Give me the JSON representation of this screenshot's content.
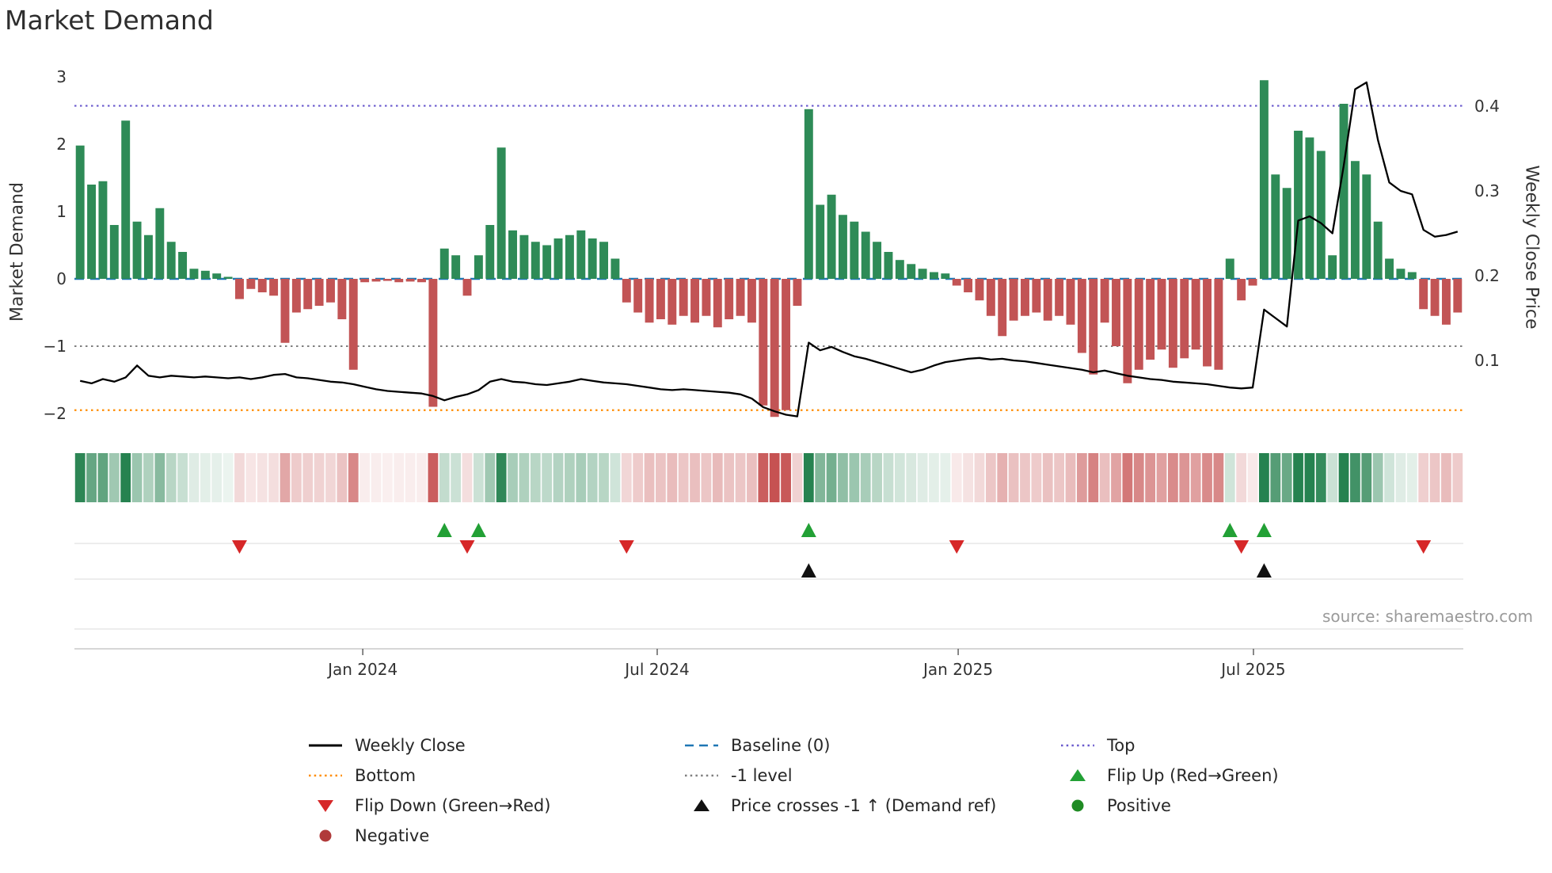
{
  "chart_data": {
    "type": "bar+line",
    "title": "Market Demand",
    "source_text": "source: sharemaestro.com",
    "left_axis": {
      "label": "Market Demand",
      "ticks": [
        3,
        2,
        1,
        0,
        -1,
        -2
      ],
      "range": [
        -2.3,
        3.1
      ]
    },
    "right_axis": {
      "label": "Weekly Close Price",
      "ticks": [
        0.4,
        0.3,
        0.2,
        0.1
      ]
    },
    "x_axis": {
      "ticks": [
        {
          "label": "Jan 2024",
          "f": 0.2076
        },
        {
          "label": "Jul 2024",
          "f": 0.4196
        },
        {
          "label": "Jan 2025",
          "f": 0.6363
        },
        {
          "label": "Jul 2025",
          "f": 0.8489
        }
      ]
    },
    "reference_lines": {
      "top": {
        "label": "Top",
        "value": 2.57,
        "color": "#6a5acd",
        "style": "dotted"
      },
      "baseline": {
        "label": "Baseline (0)",
        "value": 0,
        "color": "#1f77b4",
        "style": "dashed"
      },
      "minus_one": {
        "label": "-1 level",
        "value": -1,
        "color": "#7f7f7f",
        "style": "dotted"
      },
      "bottom": {
        "label": "Bottom",
        "value": -1.95,
        "color": "#ff8c00",
        "style": "dotted"
      }
    },
    "colors": {
      "bar_positive": "#2e8b57",
      "bar_negative": "#c25455",
      "price_line": "#000000",
      "flip_up": "#22a035",
      "flip_down": "#d62728",
      "price_cross": "#111111",
      "heat_positive": "38,130,80",
      "heat_negative": "198,82,82"
    },
    "demand": [
      1.98,
      1.4,
      1.45,
      0.8,
      2.35,
      0.85,
      0.65,
      1.05,
      0.55,
      0.4,
      0.15,
      0.12,
      0.08,
      0.03,
      -0.3,
      -0.15,
      -0.2,
      -0.25,
      -0.95,
      -0.5,
      -0.45,
      -0.4,
      -0.35,
      -0.6,
      -1.35,
      -0.05,
      -0.04,
      -0.03,
      -0.05,
      -0.04,
      -0.05,
      -1.9,
      0.45,
      0.35,
      -0.25,
      0.35,
      0.8,
      1.95,
      0.72,
      0.65,
      0.55,
      0.5,
      0.6,
      0.65,
      0.72,
      0.6,
      0.55,
      0.3,
      -0.35,
      -0.5,
      -0.65,
      -0.6,
      -0.68,
      -0.55,
      -0.65,
      -0.55,
      -0.72,
      -0.6,
      -0.55,
      -0.65,
      -1.88,
      -2.05,
      -1.95,
      -0.4,
      2.52,
      1.1,
      1.25,
      0.95,
      0.85,
      0.7,
      0.55,
      0.4,
      0.28,
      0.22,
      0.15,
      0.1,
      0.08,
      -0.1,
      -0.2,
      -0.32,
      -0.55,
      -0.85,
      -0.62,
      -0.55,
      -0.5,
      -0.62,
      -0.55,
      -0.68,
      -1.1,
      -1.42,
      -0.65,
      -1.0,
      -1.55,
      -1.35,
      -1.2,
      -1.05,
      -1.32,
      -1.18,
      -1.05,
      -1.3,
      -1.35,
      0.3,
      -0.32,
      -0.1,
      2.95,
      1.55,
      1.35,
      2.2,
      2.1,
      1.9,
      0.35,
      2.6,
      1.75,
      1.55,
      0.85,
      0.3,
      0.15,
      0.1,
      -0.45,
      -0.55,
      -0.68,
      -0.5
    ],
    "price": [
      0.076,
      0.073,
      0.078,
      0.075,
      0.08,
      0.094,
      0.082,
      0.08,
      0.082,
      0.081,
      0.08,
      0.081,
      0.08,
      0.079,
      0.08,
      0.078,
      0.08,
      0.083,
      0.084,
      0.08,
      0.079,
      0.077,
      0.075,
      0.074,
      0.072,
      0.069,
      0.066,
      0.064,
      0.063,
      0.062,
      0.061,
      0.058,
      0.053,
      0.057,
      0.06,
      0.065,
      0.075,
      0.078,
      0.075,
      0.074,
      0.072,
      0.071,
      0.073,
      0.075,
      0.078,
      0.076,
      0.074,
      0.073,
      0.072,
      0.07,
      0.068,
      0.066,
      0.065,
      0.066,
      0.065,
      0.064,
      0.063,
      0.062,
      0.06,
      0.055,
      0.045,
      0.04,
      0.036,
      0.034,
      0.121,
      0.112,
      0.116,
      0.11,
      0.105,
      0.102,
      0.098,
      0.094,
      0.09,
      0.086,
      0.089,
      0.094,
      0.098,
      0.1,
      0.102,
      0.103,
      0.101,
      0.102,
      0.1,
      0.099,
      0.097,
      0.095,
      0.093,
      0.091,
      0.089,
      0.086,
      0.088,
      0.085,
      0.082,
      0.08,
      0.078,
      0.077,
      0.075,
      0.074,
      0.073,
      0.072,
      0.07,
      0.068,
      0.067,
      0.068,
      0.16,
      0.15,
      0.14,
      0.265,
      0.27,
      0.262,
      0.25,
      0.33,
      0.42,
      0.428,
      0.36,
      0.31,
      0.3,
      0.296,
      0.254,
      0.246,
      0.248,
      0.252
    ],
    "markers": {
      "flip_up": [
        32,
        35,
        64,
        101,
        104
      ],
      "flip_down": [
        14,
        34,
        48,
        77,
        102,
        118
      ],
      "price_cross": [
        64,
        104
      ]
    },
    "legend": [
      {
        "label": "Weekly Close",
        "swatch": "solid-line",
        "color": "#000000"
      },
      {
        "label": "Bottom",
        "swatch": "dotted-line",
        "color": "#ff8c00"
      },
      {
        "label": "Flip Down (Green→Red)",
        "swatch": "triangle-down",
        "color": "#d62728"
      },
      {
        "label": "Negative",
        "swatch": "circle",
        "color": "#b03a3a"
      },
      {
        "label": "Baseline (0)",
        "swatch": "dashed-line",
        "color": "#1f77b4"
      },
      {
        "label": "-1 level",
        "swatch": "dotted-line",
        "color": "#7f7f7f"
      },
      {
        "label": "Price crosses -1 ↑ (Demand ref)",
        "swatch": "triangle-up",
        "color": "#111111"
      },
      {
        "label": "Top",
        "swatch": "dotted-line",
        "color": "#6a5acd"
      },
      {
        "label": "Flip Up (Red→Green)",
        "swatch": "triangle-up",
        "color": "#22a035"
      },
      {
        "label": "Positive",
        "swatch": "circle",
        "color": "#1f8b24"
      }
    ]
  }
}
